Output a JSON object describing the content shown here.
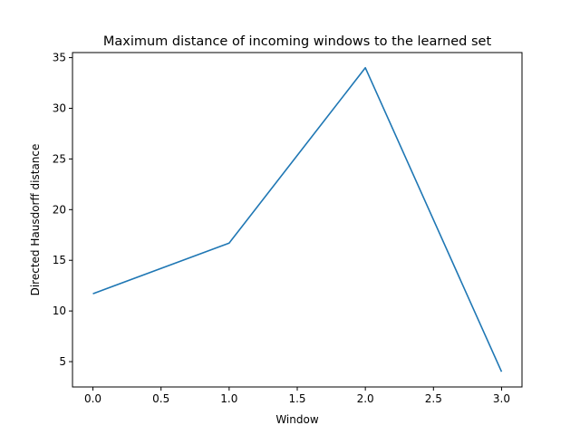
{
  "chart_data": {
    "type": "line",
    "title": "Maximum distance of incoming windows to the learned set",
    "xlabel": "Window",
    "ylabel": "Directed Hausdorff distance",
    "x": [
      0,
      1,
      2,
      3
    ],
    "series": [
      {
        "values": [
          11.7,
          16.7,
          34.0,
          4.0
        ],
        "color": "#1f77b4"
      }
    ],
    "xlim": [
      -0.15,
      3.15
    ],
    "ylim": [
      2.5,
      35.5
    ],
    "xticks": [
      0.0,
      0.5,
      1.0,
      1.5,
      2.0,
      2.5,
      3.0
    ],
    "xtick_labels": [
      "0.0",
      "0.5",
      "1.0",
      "1.5",
      "2.0",
      "2.5",
      "3.0"
    ],
    "yticks": [
      5,
      10,
      15,
      20,
      25,
      30,
      35
    ],
    "ytick_labels": [
      "5",
      "10",
      "15",
      "20",
      "25",
      "30",
      "35"
    ],
    "grid": false,
    "legend": false
  }
}
